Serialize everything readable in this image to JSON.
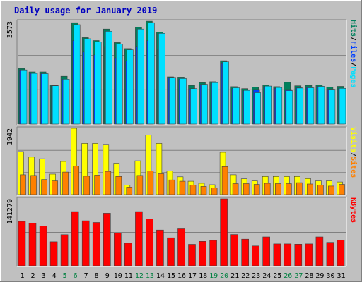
{
  "colors": {
    "background": "#c0c0c0",
    "frame_light": "#ffffff",
    "frame_dark": "#808080",
    "plot_bg": "#c0c0c0",
    "grid": "#808080",
    "title": "#0000c0",
    "hits": "#00805c",
    "files": "#0040ff",
    "pages": "#00e0ff",
    "visits": "#ffff00",
    "sites": "#ff8000",
    "kbytes": "#ff0000",
    "weekend_label": "#008040",
    "day_label": "#000000"
  },
  "chart_data": {
    "type": "bar",
    "title": "Daily usage for January 2019",
    "days": [
      "1",
      "2",
      "3",
      "4",
      "5",
      "6",
      "7",
      "8",
      "9",
      "10",
      "11",
      "12",
      "13",
      "14",
      "15",
      "16",
      "17",
      "18",
      "19",
      "20",
      "21",
      "22",
      "23",
      "24",
      "25",
      "26",
      "27",
      "28",
      "29",
      "30",
      "31"
    ],
    "weekend_days": [
      5,
      6,
      12,
      13,
      19,
      20,
      26,
      27
    ],
    "panels": [
      {
        "id": "hits-files-pages",
        "ymax": 3573,
        "ymax_label": "3573",
        "legend": [
          {
            "label": "Hits",
            "color_key": "hits"
          },
          {
            "label": "/",
            "color_key": "day_label"
          },
          {
            "label": "Files",
            "color_key": "files"
          },
          {
            "label": "/",
            "color_key": "day_label"
          },
          {
            "label": "Pages",
            "color_key": "pages"
          }
        ],
        "series": [
          {
            "name": "Hits",
            "color_key": "hits",
            "values": [
              1930,
              1810,
              1810,
              1360,
              1660,
              3520,
              3000,
              2900,
              3300,
              2830,
              2620,
              3370,
              3570,
              3190,
              1640,
              1630,
              1340,
              1440,
              1470,
              2200,
              1300,
              1230,
              1290,
              1350,
              1300,
              1450,
              1330,
              1340,
              1350,
              1280,
              1310
            ]
          },
          {
            "name": "Files",
            "color_key": "files",
            "values": [
              1880,
              1760,
              1750,
              1340,
              1560,
              2900,
              2500,
              2400,
              2700,
              2300,
              2200,
              2700,
              2900,
              2600,
              1600,
              1560,
              1220,
              1370,
              1420,
              2100,
              1230,
              1160,
              1200,
              1300,
              1240,
              1200,
              1260,
              1270,
              1310,
              1210,
              1240
            ]
          },
          {
            "name": "Pages",
            "color_key": "pages",
            "values": [
              1880,
              1760,
              1750,
              1330,
              1560,
              3450,
              2960,
              2850,
              3220,
              2780,
              2580,
              3300,
              3520,
              3150,
              1620,
              1580,
              1230,
              1380,
              1440,
              2160,
              1260,
              1170,
              1090,
              1320,
              1270,
              1160,
              1250,
              1260,
              1310,
              1210,
              1240
            ]
          }
        ]
      },
      {
        "id": "visits-sites",
        "ymax": 1942,
        "ymax_label": "1942",
        "legend": [
          {
            "label": "Visits",
            "color_key": "visits"
          },
          {
            "label": "/",
            "color_key": "day_label"
          },
          {
            "label": "Sites",
            "color_key": "sites"
          }
        ],
        "series": [
          {
            "name": "Visits",
            "color_key": "visits",
            "values": [
              1260,
              1100,
              1050,
              600,
              970,
              1942,
              1500,
              1500,
              1470,
              920,
              280,
              990,
              1750,
              1500,
              690,
              520,
              390,
              330,
              290,
              1240,
              580,
              460,
              400,
              530,
              530,
              530,
              530,
              470,
              400,
              400,
              370
            ]
          },
          {
            "name": "Sites",
            "color_key": "sites",
            "values": [
              580,
              560,
              440,
              400,
              660,
              840,
              540,
              570,
              680,
              530,
              220,
              560,
              690,
              610,
              430,
              390,
              280,
              240,
              200,
              820,
              320,
              320,
              300,
              330,
              320,
              320,
              350,
              310,
              280,
              250,
              300
            ]
          }
        ]
      },
      {
        "id": "kbytes",
        "ymax": 141279,
        "ymax_label": "141279",
        "legend": [
          {
            "label": "KBytes",
            "color_key": "kbytes"
          }
        ],
        "series": [
          {
            "name": "KBytes",
            "color_key": "kbytes",
            "values": [
              93700,
              90300,
              84100,
              50700,
              65800,
              114300,
              95000,
              91500,
              111000,
              69500,
              47700,
              114400,
              99000,
              75500,
              59200,
              78100,
              45300,
              51600,
              53700,
              141279,
              66100,
              56200,
              42000,
              61000,
              46300,
              46300,
              45700,
              46300,
              61000,
              49500,
              54400
            ]
          }
        ]
      }
    ]
  }
}
